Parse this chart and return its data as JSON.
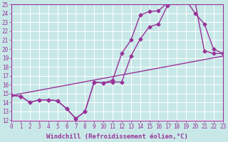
{
  "background_color": "#c8e8e8",
  "grid_color": "#ffffff",
  "line_color": "#993399",
  "xlabel": "Windchill (Refroidissement éolien,°C)",
  "xlim": [
    0,
    23
  ],
  "ylim": [
    12,
    25
  ],
  "xticks": [
    0,
    1,
    2,
    3,
    4,
    5,
    6,
    7,
    8,
    9,
    10,
    11,
    12,
    13,
    14,
    15,
    16,
    17,
    18,
    19,
    20,
    21,
    22,
    23
  ],
  "yticks": [
    12,
    13,
    14,
    15,
    16,
    17,
    18,
    19,
    20,
    21,
    22,
    23,
    24,
    25
  ],
  "line1_x": [
    0,
    1,
    2,
    3,
    4,
    5,
    6,
    7,
    8,
    9,
    10,
    11,
    12,
    13,
    14,
    15,
    16,
    17,
    18,
    19,
    20,
    21,
    22,
    23
  ],
  "line1_y": [
    14.8,
    14.7,
    14.0,
    14.3,
    14.3,
    14.2,
    13.3,
    12.2,
    13.0,
    16.3,
    16.2,
    16.3,
    16.3,
    19.2,
    21.1,
    22.5,
    22.8,
    24.9,
    25.2,
    25.3,
    25.2,
    19.8,
    19.5,
    19.5
  ],
  "line2_x": [
    0,
    1,
    2,
    3,
    4,
    5,
    6,
    7,
    8,
    9,
    10,
    11,
    12,
    13,
    14,
    15,
    16,
    17,
    18,
    19,
    20,
    21,
    22,
    23
  ],
  "line2_y": [
    14.8,
    14.7,
    14.0,
    14.3,
    14.3,
    14.2,
    13.3,
    12.2,
    13.0,
    16.3,
    16.2,
    16.5,
    19.5,
    21.0,
    23.8,
    24.2,
    24.3,
    25.2,
    25.5,
    25.5,
    24.0,
    22.8,
    20.0,
    19.5
  ],
  "line3_x": [
    0,
    23
  ],
  "line3_y": [
    14.8,
    19.2
  ],
  "marker": "D",
  "markersize": 2.5,
  "linewidth": 1.0,
  "xlabel_fontsize": 6.5,
  "tick_fontsize": 5.5
}
